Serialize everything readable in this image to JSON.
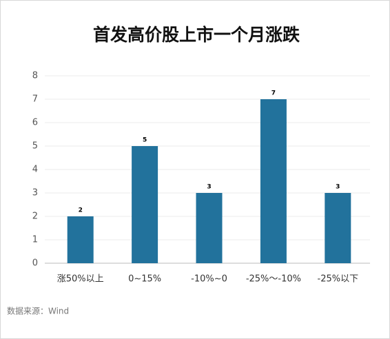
{
  "chart_data": {
    "type": "bar",
    "title": "首发高价股上市一个月涨跌",
    "categories": [
      "涨50%以上",
      "0~15%",
      "-10%~0",
      "-25%～-10%",
      "-25%以下"
    ],
    "values": [
      2,
      5,
      3,
      7,
      3
    ],
    "color": "#22729c",
    "ylim": [
      0,
      8
    ],
    "yticks": [
      0,
      1,
      2,
      3,
      4,
      5,
      6,
      7,
      8
    ],
    "grid": true,
    "source": "数据来源：Wind"
  }
}
